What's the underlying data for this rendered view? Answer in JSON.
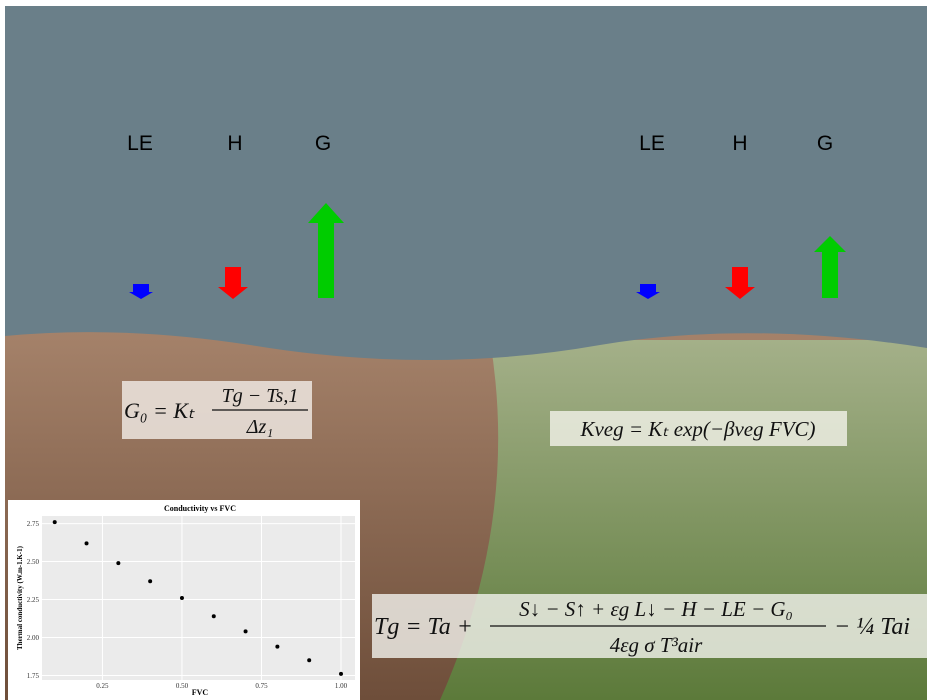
{
  "flux_labels": {
    "left": [
      "LE",
      "H",
      "G"
    ],
    "right": [
      "LE",
      "H",
      "G"
    ]
  },
  "formulas": {
    "ground_flux": {
      "lhs": "G₀ = Kₜ",
      "numerator": "Tg − Ts,1",
      "denominator": "Δz₁"
    },
    "conductivity": "Kveg = Kₜ exp(−βveg FVC)",
    "ground_temperature": {
      "lhs": "Tg = Ta +",
      "numerator": "S↓ − S↑ + εg L↓ − H − LE − G₀",
      "denominator": "4εg σ T³air",
      "tail": "− ¼ Tai"
    }
  },
  "chart_data": {
    "type": "scatter",
    "title": "Conductivity vs FVC",
    "x_label": "FVC",
    "y_label": "Thermal conductivity (W.m-1.K-1)",
    "x": [
      0.1,
      0.2,
      0.3,
      0.4,
      0.5,
      0.6,
      0.7,
      0.8,
      0.9,
      1.0
    ],
    "values": [
      2.76,
      2.62,
      2.49,
      2.37,
      2.26,
      2.14,
      2.04,
      1.94,
      1.85,
      1.76
    ],
    "color": "#000000",
    "xlim": [
      0.06,
      1.044
    ],
    "ylim": [
      1.72,
      2.8
    ],
    "xticks": [
      0.25,
      {
        "value": 0.5,
        "label": "0.50"
      },
      0.75,
      {
        "value": 1.0,
        "label": "1.00"
      }
    ],
    "yticks": [
      1.75,
      {
        "value": 2.0,
        "label": "2.00"
      },
      2.25,
      {
        "value": 2.5,
        "label": "2.50"
      },
      2.75
    ],
    "grid": true
  }
}
